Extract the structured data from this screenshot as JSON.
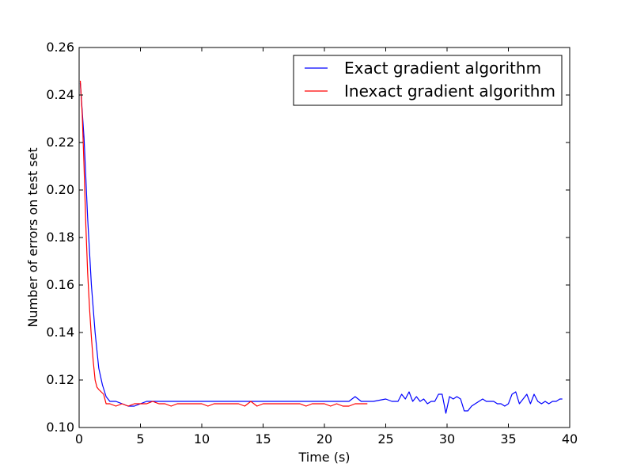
{
  "chart_data": {
    "type": "line",
    "xlabel": "Time (s)",
    "ylabel": "Number of errors on test set",
    "xlim": [
      0,
      40
    ],
    "ylim": [
      0.1,
      0.26
    ],
    "xticks": [
      0,
      5,
      10,
      15,
      20,
      25,
      30,
      35,
      40
    ],
    "xtick_labels": [
      "0",
      "5",
      "10",
      "15",
      "20",
      "25",
      "30",
      "35",
      "40"
    ],
    "yticks": [
      0.1,
      0.12,
      0.14,
      0.16,
      0.18,
      0.2,
      0.22,
      0.24,
      0.26
    ],
    "ytick_labels": [
      "0.10",
      "0.12",
      "0.14",
      "0.16",
      "0.18",
      "0.20",
      "0.22",
      "0.24",
      "0.26"
    ],
    "grid": false,
    "legend_position": "top-right",
    "series": [
      {
        "name": "Exact gradient algorithm",
        "color": "#0000ff",
        "x": [
          0.1,
          0.4,
          0.7,
          1.0,
          1.3,
          1.6,
          1.9,
          2.2,
          2.5,
          3.0,
          3.5,
          4.0,
          4.5,
          5.0,
          5.5,
          6,
          7,
          8,
          9,
          10,
          11,
          12,
          13,
          14,
          15,
          16,
          17,
          18,
          19,
          20,
          21,
          21.5,
          22,
          22.5,
          23,
          23.5,
          24,
          25,
          25.5,
          26,
          26.3,
          26.6,
          26.9,
          27.2,
          27.5,
          27.8,
          28.1,
          28.4,
          28.7,
          29.0,
          29.3,
          29.6,
          29.9,
          30.2,
          30.5,
          30.8,
          31.1,
          31.4,
          31.7,
          32.0,
          32.3,
          32.6,
          32.9,
          33.2,
          33.5,
          33.8,
          34.1,
          34.4,
          34.7,
          35.0,
          35.3,
          35.6,
          35.9,
          36.2,
          36.5,
          36.8,
          37.1,
          37.4,
          37.7,
          38.0,
          38.3,
          38.6,
          38.9,
          39.2,
          39.4
        ],
        "y": [
          0.245,
          0.222,
          0.188,
          0.16,
          0.14,
          0.125,
          0.118,
          0.113,
          0.111,
          0.111,
          0.11,
          0.109,
          0.109,
          0.11,
          0.111,
          0.111,
          0.111,
          0.111,
          0.111,
          0.111,
          0.111,
          0.111,
          0.111,
          0.111,
          0.111,
          0.111,
          0.111,
          0.111,
          0.111,
          0.111,
          0.111,
          0.111,
          0.111,
          0.113,
          0.111,
          0.111,
          0.111,
          0.112,
          0.111,
          0.111,
          0.114,
          0.112,
          0.115,
          0.111,
          0.113,
          0.111,
          0.112,
          0.11,
          0.111,
          0.111,
          0.114,
          0.114,
          0.106,
          0.113,
          0.112,
          0.113,
          0.112,
          0.107,
          0.107,
          0.109,
          0.11,
          0.111,
          0.112,
          0.111,
          0.111,
          0.111,
          0.11,
          0.11,
          0.109,
          0.11,
          0.114,
          0.115,
          0.11,
          0.112,
          0.114,
          0.11,
          0.114,
          0.111,
          0.11,
          0.111,
          0.11,
          0.111,
          0.111,
          0.112,
          0.112
        ]
      },
      {
        "name": "Inexact gradient algorithm",
        "color": "#ff0000",
        "x": [
          0.1,
          0.25,
          0.4,
          0.55,
          0.7,
          0.85,
          1.0,
          1.15,
          1.3,
          1.45,
          1.6,
          1.8,
          2.0,
          2.2,
          2.5,
          3.0,
          3.5,
          4.0,
          4.5,
          5.0,
          5.5,
          6,
          6.5,
          7,
          7.5,
          8,
          9,
          10,
          10.5,
          11,
          12,
          13,
          13.5,
          14,
          14.5,
          15,
          15.5,
          16,
          17,
          18,
          18.5,
          19,
          20,
          20.5,
          21,
          21.5,
          22,
          22.5,
          23,
          23.5
        ],
        "y": [
          0.246,
          0.232,
          0.21,
          0.185,
          0.165,
          0.15,
          0.138,
          0.128,
          0.12,
          0.117,
          0.116,
          0.115,
          0.114,
          0.11,
          0.11,
          0.109,
          0.11,
          0.109,
          0.11,
          0.11,
          0.11,
          0.111,
          0.11,
          0.11,
          0.109,
          0.11,
          0.11,
          0.11,
          0.109,
          0.11,
          0.11,
          0.11,
          0.109,
          0.111,
          0.109,
          0.11,
          0.11,
          0.11,
          0.11,
          0.11,
          0.109,
          0.11,
          0.11,
          0.109,
          0.11,
          0.109,
          0.109,
          0.11,
          0.11,
          0.11
        ]
      }
    ]
  }
}
